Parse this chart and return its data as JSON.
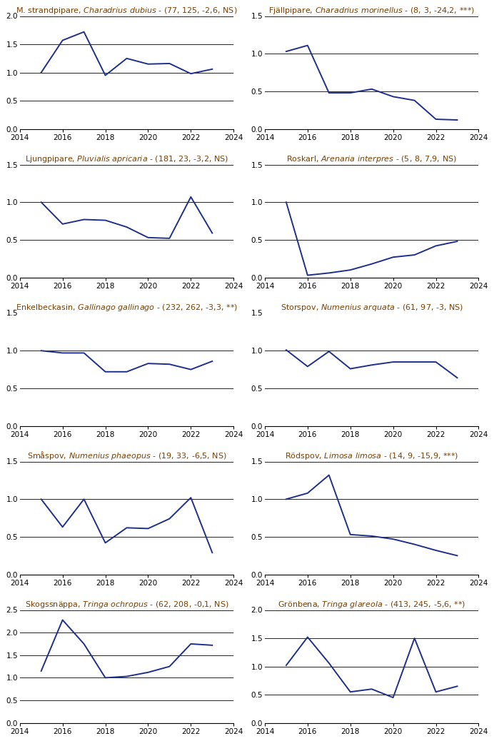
{
  "subplots": [
    {
      "title_plain": "M. strandpipare, ",
      "title_italic": "Charadrius dubius",
      "title_suffix": " - (77, 125, -2,6, NS)",
      "years": [
        2015,
        2016,
        2017,
        2018,
        2019,
        2020,
        2021,
        2022,
        2023
      ],
      "values": [
        1.0,
        1.57,
        1.72,
        0.95,
        1.25,
        1.15,
        1.16,
        0.98,
        1.06
      ],
      "xlim": [
        2014,
        2024
      ],
      "ylim": [
        0.0,
        2.0
      ],
      "yticks": [
        0.0,
        0.5,
        1.0,
        1.5,
        2.0
      ],
      "hlines": [
        0.5,
        1.0,
        1.5,
        2.0
      ]
    },
    {
      "title_plain": "Fjällpipare, ",
      "title_italic": "Charadrius morinellus",
      "title_suffix": " - (8, 3, -24,2, ***)",
      "years": [
        2015,
        2016,
        2017,
        2018,
        2019,
        2020,
        2021,
        2022,
        2023
      ],
      "values": [
        1.03,
        1.11,
        0.48,
        0.48,
        0.53,
        0.43,
        0.38,
        0.13,
        0.12
      ],
      "xlim": [
        2014,
        2024
      ],
      "ylim": [
        0.0,
        1.5
      ],
      "yticks": [
        0.0,
        0.5,
        1.0,
        1.5
      ],
      "hlines": [
        0.5,
        1.0,
        1.5
      ]
    },
    {
      "title_plain": "Ljungpipare, ",
      "title_italic": "Pluvialis apricaria",
      "title_suffix": " - (181, 23, -3,2, NS)",
      "years": [
        2015,
        2016,
        2017,
        2018,
        2019,
        2020,
        2021,
        2022,
        2023
      ],
      "values": [
        1.0,
        0.71,
        0.77,
        0.76,
        0.67,
        0.53,
        0.52,
        1.07,
        0.59
      ],
      "xlim": [
        2014,
        2024
      ],
      "ylim": [
        0.0,
        1.5
      ],
      "yticks": [
        0.0,
        0.5,
        1.0,
        1.5
      ],
      "hlines": [
        0.5,
        1.0,
        1.5
      ]
    },
    {
      "title_plain": "Roskarl, ",
      "title_italic": "Arenaria interpres",
      "title_suffix": " - (5, 8, 7,9, NS)",
      "years": [
        2015,
        2016,
        2017,
        2018,
        2019,
        2020,
        2021,
        2022,
        2023
      ],
      "values": [
        1.0,
        0.03,
        0.06,
        0.1,
        0.18,
        0.27,
        0.3,
        0.42,
        0.48
      ],
      "xlim": [
        2014,
        2024
      ],
      "ylim": [
        0.0,
        1.5
      ],
      "yticks": [
        0.0,
        0.5,
        1.0,
        1.5
      ],
      "hlines": [
        0.5,
        1.0,
        1.5
      ]
    },
    {
      "title_plain": "Enkelbeckasin, ",
      "title_italic": "Gallinago gallinago",
      "title_suffix": " - (232, 262, -3,3, **)",
      "years": [
        2015,
        2016,
        2017,
        2018,
        2019,
        2020,
        2021,
        2022,
        2023
      ],
      "values": [
        1.0,
        0.97,
        0.97,
        0.72,
        0.72,
        0.83,
        0.82,
        0.75,
        0.86
      ],
      "xlim": [
        2014,
        2024
      ],
      "ylim": [
        0.0,
        1.5
      ],
      "yticks": [
        0.0,
        0.5,
        1.0,
        1.5
      ],
      "hlines": [
        0.5,
        1.0,
        1.5
      ]
    },
    {
      "title_plain": "Storspov, ",
      "title_italic": "Numenius arquata",
      "title_suffix": " - (61, 97, -3, NS)",
      "years": [
        2015,
        2016,
        2017,
        2018,
        2019,
        2020,
        2021,
        2022,
        2023
      ],
      "values": [
        1.01,
        0.79,
        0.99,
        0.76,
        0.81,
        0.85,
        0.85,
        0.85,
        0.64
      ],
      "xlim": [
        2014,
        2024
      ],
      "ylim": [
        0.0,
        1.5
      ],
      "yticks": [
        0.0,
        0.5,
        1.0,
        1.5
      ],
      "hlines": [
        0.5,
        1.0,
        1.5
      ]
    },
    {
      "title_plain": "Småspov, ",
      "title_italic": "Numenius phaeopus",
      "title_suffix": " - (19, 33, -6,5, NS)",
      "years": [
        2015,
        2016,
        2017,
        2018,
        2019,
        2020,
        2021,
        2022,
        2023
      ],
      "values": [
        1.0,
        0.63,
        1.0,
        0.42,
        0.62,
        0.61,
        0.74,
        1.02,
        0.29
      ],
      "xlim": [
        2014,
        2024
      ],
      "ylim": [
        0.0,
        1.5
      ],
      "yticks": [
        0.0,
        0.5,
        1.0,
        1.5
      ],
      "hlines": [
        0.5,
        1.0,
        1.5
      ]
    },
    {
      "title_plain": "Rödspov, ",
      "title_italic": "Limosa limosa",
      "title_suffix": " - (14, 9, -15,9, ***)",
      "years": [
        2015,
        2016,
        2017,
        2018,
        2019,
        2020,
        2021,
        2022,
        2023
      ],
      "values": [
        1.0,
        1.08,
        1.32,
        0.53,
        0.51,
        0.47,
        0.4,
        0.32,
        0.25
      ],
      "xlim": [
        2014,
        2024
      ],
      "ylim": [
        0.0,
        1.5
      ],
      "yticks": [
        0.0,
        0.5,
        1.0,
        1.5
      ],
      "hlines": [
        0.5,
        1.0,
        1.5
      ]
    },
    {
      "title_plain": "Skogssnäppa, ",
      "title_italic": "Tringa ochropus",
      "title_suffix": " - (62, 208, -0,1, NS)",
      "years": [
        2015,
        2016,
        2017,
        2018,
        2019,
        2020,
        2021,
        2022,
        2023
      ],
      "values": [
        1.15,
        2.28,
        1.75,
        1.0,
        1.03,
        1.12,
        1.25,
        1.75,
        1.72
      ],
      "xlim": [
        2014,
        2024
      ],
      "ylim": [
        0.0,
        2.5
      ],
      "yticks": [
        0.0,
        0.5,
        1.0,
        1.5,
        2.0,
        2.5
      ],
      "hlines": [
        0.5,
        1.0,
        1.5,
        2.0,
        2.5
      ]
    },
    {
      "title_plain": "Grönbena, ",
      "title_italic": "Tringa glareola",
      "title_suffix": " - (413, 245, -5,6, **)",
      "years": [
        2015,
        2016,
        2017,
        2018,
        2019,
        2020,
        2021,
        2022,
        2023
      ],
      "values": [
        1.02,
        1.52,
        1.06,
        0.55,
        0.6,
        0.45,
        1.5,
        0.55,
        0.65
      ],
      "xlim": [
        2014,
        2024
      ],
      "ylim": [
        0.0,
        2.0
      ],
      "yticks": [
        0.0,
        0.5,
        1.0,
        1.5,
        2.0
      ],
      "hlines": [
        0.5,
        1.0,
        1.5,
        2.0
      ]
    }
  ],
  "line_color": "#1f2f8c",
  "line_width": 1.4,
  "bg_color": "#ffffff",
  "title_color": "#7b3f00",
  "title_fontsize": 8.0,
  "tick_fontsize": 7.5,
  "hline_color": "#000000",
  "hline_lw": 0.6,
  "xticks": [
    2014,
    2016,
    2018,
    2020,
    2022,
    2024
  ]
}
